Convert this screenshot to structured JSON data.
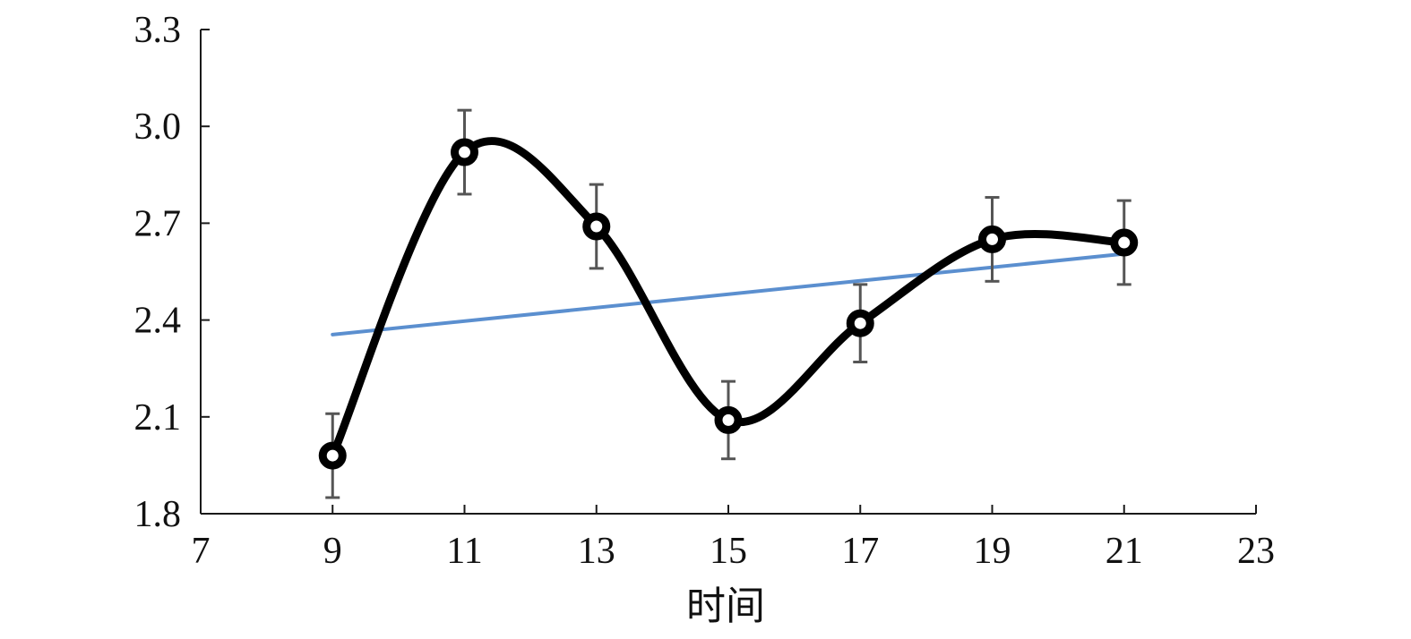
{
  "chart_data": {
    "type": "line",
    "title": "",
    "xlabel": "时间",
    "ylabel": "",
    "xlim": [
      7,
      23
    ],
    "ylim": [
      1.8,
      3.3
    ],
    "x_ticks": [
      "7",
      "9",
      "11",
      "13",
      "15",
      "17",
      "19",
      "21",
      "23"
    ],
    "y_ticks": [
      "1.8",
      "2.1",
      "2.4",
      "2.7",
      "3.0",
      "3.3"
    ],
    "x_tick_values": [
      7,
      9,
      11,
      13,
      15,
      17,
      19,
      21,
      23
    ],
    "y_tick_values": [
      1.8,
      2.1,
      2.4,
      2.7,
      3.0,
      3.3
    ],
    "grid": false,
    "legend": "none",
    "series": [
      {
        "style": "smooth-line-with-markers",
        "color": "#000000",
        "x": [
          9,
          11,
          13,
          15,
          17,
          19,
          21
        ],
        "y": [
          1.98,
          2.92,
          2.69,
          2.09,
          2.39,
          2.65,
          2.64
        ],
        "error": [
          0.13,
          0.13,
          0.13,
          0.12,
          0.12,
          0.13,
          0.13
        ]
      },
      {
        "style": "trend-line",
        "color": "#5b8fcf",
        "x": [
          9,
          21
        ],
        "y": [
          2.355,
          2.605
        ]
      }
    ]
  }
}
